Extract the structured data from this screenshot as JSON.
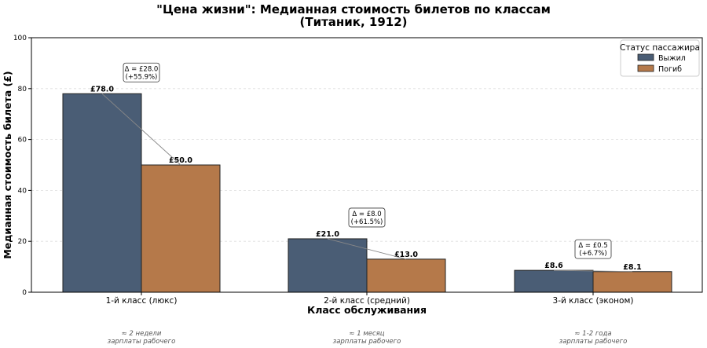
{
  "chart_data": {
    "type": "bar",
    "title_line1": "\"Цена жизни\": Медианная стоимость билетов по классам",
    "title_line2": "(Титаник, 1912)",
    "xlabel": "Класс обслуживания",
    "ylabel": "Медианная стоимость билета (£)",
    "ylim": [
      0,
      100
    ],
    "yticks": [
      0,
      20,
      40,
      60,
      80,
      100
    ],
    "grid": "horizontal dashed",
    "categories": [
      "1-й класс (люкс)",
      "2-й класс (средний)",
      "3-й класс (эконом)"
    ],
    "series": [
      {
        "name": "Выжил",
        "color": "#4a5d75",
        "values": [
          78.0,
          21.0,
          8.6
        ],
        "labels": [
          "£78.0",
          "£21.0",
          "£8.6"
        ]
      },
      {
        "name": "Погиб",
        "color": "#b5794a",
        "values": [
          50.0,
          13.0,
          8.1
        ],
        "labels": [
          "£50.0",
          "£13.0",
          "£8.1"
        ]
      }
    ],
    "deltas": [
      {
        "line1": "Δ = £28.0",
        "line2": "(+55.9%)"
      },
      {
        "line1": "Δ = £8.0",
        "line2": "(+61.5%)"
      },
      {
        "line1": "Δ = £0.5",
        "line2": "(+6.7%)"
      }
    ],
    "notes": [
      {
        "line1": "≈ 2 недели",
        "line2": "зарплаты рабочего"
      },
      {
        "line1": "≈ 1 месяц",
        "line2": "зарплаты рабочего"
      },
      {
        "line1": "≈ 1-2 года",
        "line2": "зарплаты рабочего"
      }
    ],
    "legend": {
      "title": "Статус пассажира",
      "position": "top-right"
    }
  }
}
